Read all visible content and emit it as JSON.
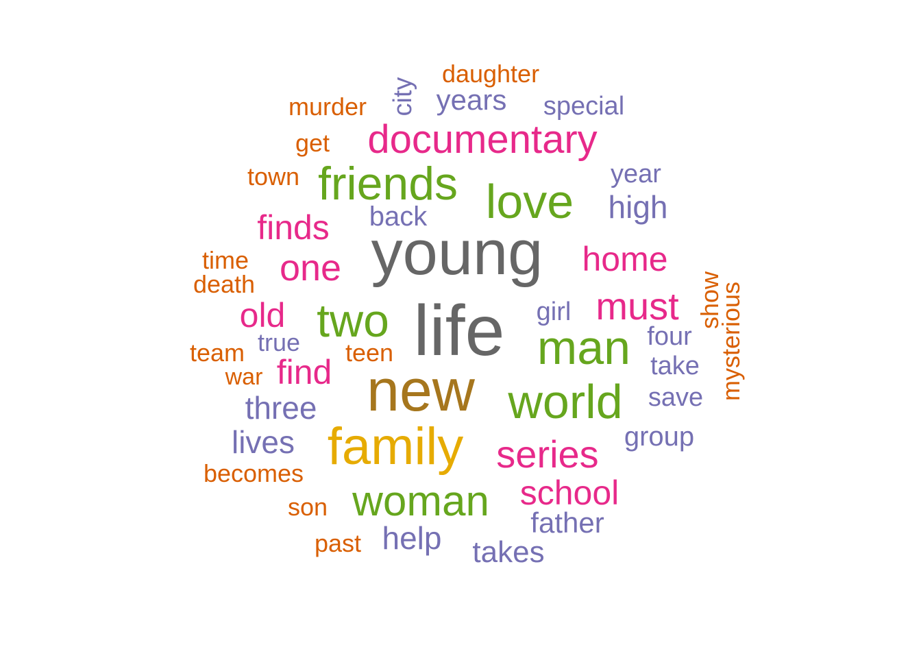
{
  "palette": {
    "grey": "#666666",
    "olive": "#a6761d",
    "gold": "#e6ab02",
    "green": "#66a61e",
    "magenta": "#e7298a",
    "purple": "#7570b3",
    "orange": "#d95f02"
  },
  "words": [
    {
      "text": "life",
      "color": "grey"
    },
    {
      "text": "young",
      "color": "grey"
    },
    {
      "text": "new",
      "color": "olive"
    },
    {
      "text": "family",
      "color": "gold"
    },
    {
      "text": "man",
      "color": "green"
    },
    {
      "text": "world",
      "color": "green"
    },
    {
      "text": "love",
      "color": "green"
    },
    {
      "text": "friends",
      "color": "green"
    },
    {
      "text": "two",
      "color": "green"
    },
    {
      "text": "woman",
      "color": "green"
    },
    {
      "text": "documentary",
      "color": "magenta"
    },
    {
      "text": "series",
      "color": "magenta"
    },
    {
      "text": "one",
      "color": "magenta"
    },
    {
      "text": "must",
      "color": "magenta"
    },
    {
      "text": "home",
      "color": "magenta"
    },
    {
      "text": "school",
      "color": "magenta"
    },
    {
      "text": "finds",
      "color": "magenta"
    },
    {
      "text": "find",
      "color": "magenta"
    },
    {
      "text": "old",
      "color": "magenta"
    },
    {
      "text": "high",
      "color": "purple"
    },
    {
      "text": "three",
      "color": "purple"
    },
    {
      "text": "lives",
      "color": "purple"
    },
    {
      "text": "help",
      "color": "purple"
    },
    {
      "text": "takes",
      "color": "purple"
    },
    {
      "text": "father",
      "color": "purple"
    },
    {
      "text": "group",
      "color": "purple"
    },
    {
      "text": "years",
      "color": "purple"
    },
    {
      "text": "special",
      "color": "purple"
    },
    {
      "text": "year",
      "color": "purple"
    },
    {
      "text": "back",
      "color": "purple"
    },
    {
      "text": "girl",
      "color": "purple"
    },
    {
      "text": "four",
      "color": "purple"
    },
    {
      "text": "take",
      "color": "purple"
    },
    {
      "text": "save",
      "color": "purple"
    },
    {
      "text": "true",
      "color": "purple"
    },
    {
      "text": "city",
      "color": "purple"
    },
    {
      "text": "daughter",
      "color": "orange"
    },
    {
      "text": "murder",
      "color": "orange"
    },
    {
      "text": "get",
      "color": "orange"
    },
    {
      "text": "town",
      "color": "orange"
    },
    {
      "text": "time",
      "color": "orange"
    },
    {
      "text": "death",
      "color": "orange"
    },
    {
      "text": "team",
      "color": "orange"
    },
    {
      "text": "war",
      "color": "orange"
    },
    {
      "text": "teen",
      "color": "orange"
    },
    {
      "text": "becomes",
      "color": "orange"
    },
    {
      "text": "son",
      "color": "orange"
    },
    {
      "text": "past",
      "color": "orange"
    },
    {
      "text": "show",
      "color": "orange"
    },
    {
      "text": "mysterious",
      "color": "orange"
    }
  ]
}
